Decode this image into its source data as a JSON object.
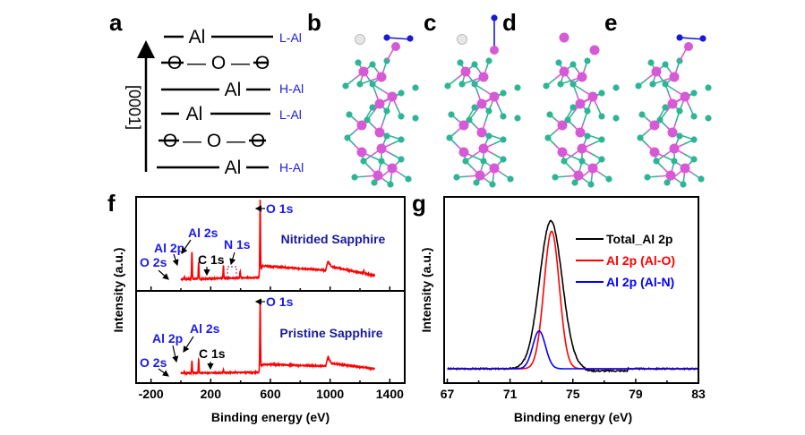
{
  "panel_a": {
    "label": "a",
    "axis": "[0001]",
    "layers": [
      {
        "text": "Al",
        "tag": "L-Al"
      },
      {
        "text": "O — O — O",
        "tag": ""
      },
      {
        "text": "Al",
        "tag": "H-Al"
      },
      {
        "text": "Al",
        "tag": "L-Al"
      },
      {
        "text": "O — O — O",
        "tag": ""
      },
      {
        "text": "Al",
        "tag": "H-Al"
      }
    ]
  },
  "structures": [
    {
      "label": "b",
      "extras": "white+N2"
    },
    {
      "label": "c",
      "extras": "white+N"
    },
    {
      "label": "d",
      "extras": "none"
    },
    {
      "label": "e",
      "extras": "N2"
    }
  ],
  "colors": {
    "al": "#d65ad6",
    "o": "#2fb596",
    "n": "#1a1ad6",
    "h": "#e6e6e6",
    "red": "#ff0000",
    "blue": "#0000ff",
    "black": "#000000",
    "annBlue": "#1a1aee"
  },
  "chart_data": [
    {
      "panel": "f",
      "type": "line",
      "xlabel": "Binding energy (eV)",
      "ylabel": "Intensity (a.u.)",
      "xlim": [
        -300,
        1500
      ],
      "xticks": [
        "-200",
        "200",
        "600",
        "1000",
        "1400"
      ],
      "xtick_values": [
        -200,
        200,
        600,
        1000,
        1400
      ],
      "subplots": [
        {
          "name": "Nitrided Sapphire",
          "baseline": [
            [
              0,
              0.1
            ],
            [
              520,
              0.12
            ],
            [
              545,
              0.25
            ],
            [
              970,
              0.2
            ],
            [
              985,
              0.3
            ],
            [
              1010,
              0.24
            ],
            [
              1300,
              0.14
            ]
          ],
          "peaks": [
            [
              23,
              0.03
            ],
            [
              74,
              0.31
            ],
            [
              119,
              0.19
            ],
            [
              285,
              0.14
            ],
            [
              397,
              0.08
            ],
            [
              531,
              0.81
            ],
            [
              1225,
              0.03
            ]
          ],
          "annotations": [
            {
              "text": "O 2s",
              "x": 23,
              "color": "blue"
            },
            {
              "text": "Al 2p",
              "x": 74,
              "color": "blue"
            },
            {
              "text": "Al 2s",
              "x": 119,
              "color": "blue"
            },
            {
              "text": "C 1s",
              "x": 285,
              "color": "black"
            },
            {
              "text": "N 1s",
              "x": 397,
              "color": "blue"
            },
            {
              "text": "O 1s",
              "x": 531,
              "color": "blue"
            }
          ]
        },
        {
          "name": "Pristine Sapphire",
          "baseline": [
            [
              0,
              0.09
            ],
            [
              520,
              0.1
            ],
            [
              545,
              0.19
            ],
            [
              970,
              0.17
            ],
            [
              985,
              0.27
            ],
            [
              1010,
              0.2
            ],
            [
              1300,
              0.14
            ]
          ],
          "peaks": [
            [
              23,
              0.02
            ],
            [
              74,
              0.14
            ],
            [
              119,
              0.16
            ],
            [
              285,
              0.03
            ],
            [
              531,
              0.78
            ]
          ],
          "annotations": [
            {
              "text": "O 2s",
              "x": 23,
              "color": "blue"
            },
            {
              "text": "Al 2p",
              "x": 74,
              "color": "blue"
            },
            {
              "text": "Al 2s",
              "x": 119,
              "color": "blue"
            },
            {
              "text": "C 1s",
              "x": 285,
              "color": "black"
            },
            {
              "text": "O 1s",
              "x": 531,
              "color": "blue"
            }
          ]
        }
      ]
    },
    {
      "panel": "g",
      "type": "line",
      "xlabel": "Binding energy (eV)",
      "ylabel": "Intensity (a.u.)",
      "xlim": [
        66.8,
        83
      ],
      "xticks": [
        "67",
        "71",
        "75",
        "79",
        "83"
      ],
      "xtick_values": [
        67,
        71,
        75,
        79,
        83
      ],
      "legend_position": "top-right",
      "series": [
        {
          "name": "Total_Al 2p",
          "color": "#000000",
          "center": 73.6,
          "height": 0.86,
          "fwhm": 1.7,
          "offset": 0.0
        },
        {
          "name": "Al 2p (Al-O)",
          "color": "#ff0000",
          "center": 73.65,
          "height": 0.8,
          "fwhm": 1.15,
          "offset": 0.0
        },
        {
          "name": "Al 2p (Al-N)",
          "color": "#0000ff",
          "center": 72.85,
          "height": 0.22,
          "fwhm": 0.95,
          "offset": 0.0
        }
      ]
    }
  ]
}
